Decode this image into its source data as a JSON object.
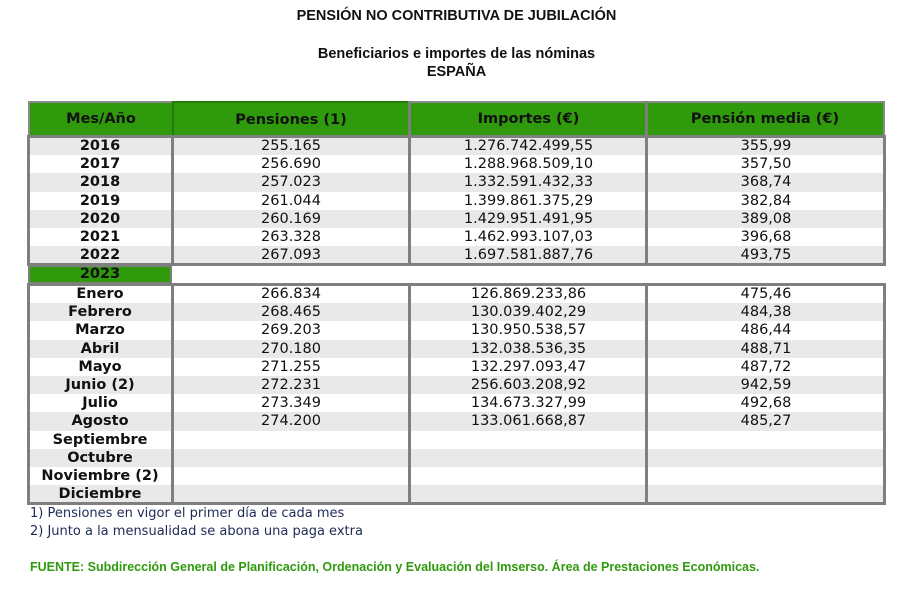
{
  "title": "PENSIÓN NO CONTRIBUTIVA DE JUBILACIÓN",
  "subtitle": "Beneficiarios e importes de las nóminas",
  "region": "ESPAÑA",
  "colors": {
    "header_green": "#2f9a0c",
    "border_gray": "#7f7f7f",
    "stripe_gray": "#e9e9e9"
  },
  "table": {
    "headers": [
      "Mes/Año",
      "Pensiones (1)",
      "Importes (€)",
      "Pensión media (€)"
    ],
    "annual_rows": [
      [
        "2016",
        "255.165",
        "1.276.742.499,55",
        "355,99"
      ],
      [
        "2017",
        "256.690",
        "1.288.968.509,10",
        "357,50"
      ],
      [
        "2018",
        "257.023",
        "1.332.591.432,33",
        "368,74"
      ],
      [
        "2019",
        "261.044",
        "1.399.861.375,29",
        "382,84"
      ],
      [
        "2020",
        "260.169",
        "1.429.951.491,95",
        "389,08"
      ],
      [
        "2021",
        "263.328",
        "1.462.993.107,03",
        "396,68"
      ],
      [
        "2022",
        "267.093",
        "1.697.581.887,76",
        "493,75"
      ]
    ],
    "year_section": "2023",
    "monthly_rows": [
      [
        "Enero",
        "266.834",
        "126.869.233,86",
        "475,46"
      ],
      [
        "Febrero",
        "268.465",
        "130.039.402,29",
        "484,38"
      ],
      [
        "Marzo",
        "269.203",
        "130.950.538,57",
        "486,44"
      ],
      [
        "Abril",
        "270.180",
        "132.038.536,35",
        "488,71"
      ],
      [
        "Mayo",
        "271.255",
        "132.297.093,47",
        "487,72"
      ],
      [
        "Junio (2)",
        "272.231",
        "256.603.208,92",
        "942,59"
      ],
      [
        "Julio",
        "273.349",
        "134.673.327,99",
        "492,68"
      ],
      [
        "Agosto",
        "274.200",
        "133.061.668,87",
        "485,27"
      ],
      [
        "Septiembre",
        "",
        "",
        ""
      ],
      [
        "Octubre",
        "",
        "",
        ""
      ],
      [
        "Noviembre (2)",
        "",
        "",
        ""
      ],
      [
        "Diciembre",
        "",
        "",
        ""
      ]
    ]
  },
  "notes": [
    "1) Pensiones en vigor el primer día de cada mes",
    "2) Junto a la mensualidad se abona una paga extra"
  ],
  "source": "FUENTE: Subdirección General de Planificación, Ordenación y Evaluación del Imserso. Área de Prestaciones Económicas."
}
